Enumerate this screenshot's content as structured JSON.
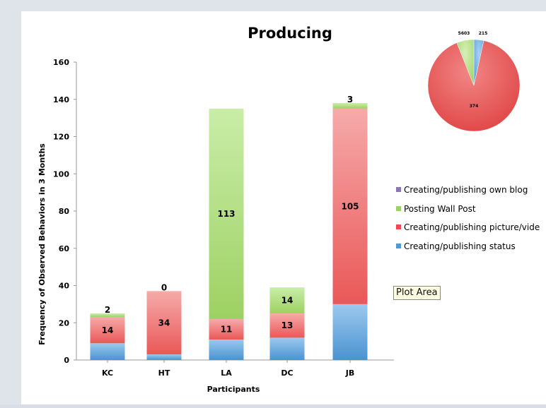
{
  "colors": {
    "status": "#4d9ad8",
    "media": "#e94c4c",
    "wall": "#9ed163",
    "blog": "#8c75b5",
    "page_bg": "#dfe3ea"
  },
  "tooltip": {
    "label": "Plot Area"
  },
  "chart_data": [
    {
      "type": "bar",
      "stacked": true,
      "title": "Producing",
      "xlabel": "Participants",
      "ylabel": "Frequency of  Observed Behaviors in 3 Months",
      "ylim": [
        0,
        160
      ],
      "yticks": [
        0,
        20,
        40,
        60,
        80,
        100,
        120,
        140,
        160
      ],
      "grid": false,
      "legend_position": "right",
      "categories": [
        "KC",
        "HT",
        "LA",
        "DC",
        "JB"
      ],
      "series": [
        {
          "name": "Creating/publishing status",
          "color": "#4d9ad8",
          "values": [
            9,
            3,
            11,
            12,
            30
          ]
        },
        {
          "name": "Creating/publishing picture/vide",
          "color": "#e94c4c",
          "values": [
            14,
            34,
            11,
            13,
            105
          ]
        },
        {
          "name": "Posting Wall Post",
          "color": "#9ed163",
          "values": [
            2,
            0,
            113,
            14,
            3
          ]
        },
        {
          "name": "Creating/publishing own blog",
          "color": "#8c75b5",
          "values": [
            0,
            0,
            0,
            0,
            0
          ]
        }
      ],
      "data_labels": [
        {
          "category": "KC",
          "series": "Creating/publishing picture/vide",
          "text": "14"
        },
        {
          "category": "KC",
          "series": "Posting Wall Post",
          "text": "2"
        },
        {
          "category": "HT",
          "series": "Creating/publishing picture/vide",
          "text": "34"
        },
        {
          "category": "HT",
          "series": "Posting Wall Post",
          "text": "0"
        },
        {
          "category": "LA",
          "series": "Creating/publishing picture/vide",
          "text": "11"
        },
        {
          "category": "LA",
          "series": "Posting Wall Post",
          "text": "113"
        },
        {
          "category": "DC",
          "series": "Creating/publishing picture/vide",
          "text": "13"
        },
        {
          "category": "DC",
          "series": "Posting Wall Post",
          "text": "14"
        },
        {
          "category": "JB",
          "series": "Creating/publishing picture/vide",
          "text": "105"
        },
        {
          "category": "JB",
          "series": "Posting Wall Post",
          "text": "3"
        }
      ],
      "legend_order": [
        "Creating/publishing own blog",
        "Posting Wall Post",
        "Creating/publishing picture/vide",
        "Creating/publishing status"
      ]
    },
    {
      "type": "pie",
      "slices": [
        {
          "series": "Creating/publishing picture/vide",
          "value": 5603,
          "label": "5603",
          "color": "#e94c4c"
        },
        {
          "series": "Posting Wall Post",
          "value": 374,
          "label": "374",
          "color": "#9ed163"
        },
        {
          "series": "Creating/publishing status",
          "value": 215,
          "label": "215",
          "color": "#4d9ad8"
        }
      ]
    }
  ]
}
